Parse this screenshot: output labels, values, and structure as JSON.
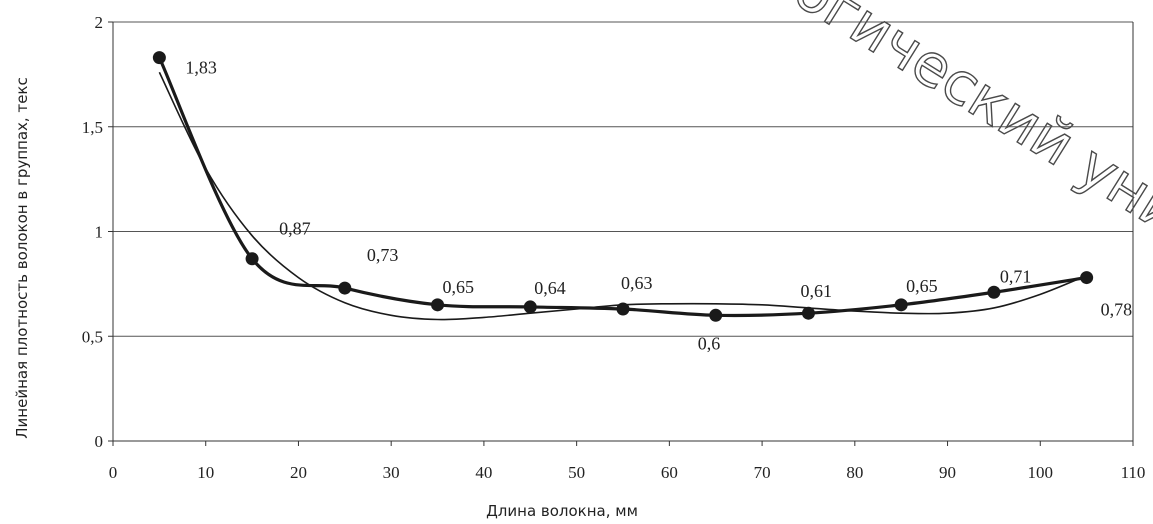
{
  "chart_data": {
    "type": "line",
    "title": "",
    "xlabel": "Длина волокна, мм",
    "ylabel": "Линейная плотность волокон в группах, текс",
    "xlim": [
      0,
      110
    ],
    "ylim": [
      0,
      2
    ],
    "x_ticks": [
      "0",
      "10",
      "20",
      "30",
      "40",
      "50",
      "60",
      "70",
      "80",
      "90",
      "100",
      "110"
    ],
    "y_ticks": [
      "0",
      "0,5",
      "1",
      "1,5",
      "2"
    ],
    "grid": "horizontal",
    "series": [
      {
        "x": [
          5,
          15,
          25,
          35,
          45,
          55,
          65,
          75,
          85,
          95,
          105
        ],
        "y": [
          1.83,
          0.87,
          0.73,
          0.65,
          0.64,
          0.63,
          0.6,
          0.61,
          0.65,
          0.71,
          0.78
        ],
        "labels": [
          "1,83",
          "0,87",
          "0,73",
          "0,65",
          "0,64",
          "0,63",
          "0,6",
          "0,61",
          "0,65",
          "0,71",
          "0,78"
        ],
        "color": "#1a1a1a",
        "markers": "circle"
      }
    ],
    "trendline": {
      "x": [
        5,
        10,
        15,
        20,
        25,
        30,
        35,
        40,
        45,
        50,
        55,
        60,
        65,
        70,
        75,
        80,
        85,
        90,
        95,
        100,
        105
      ],
      "y": [
        1.76,
        1.3,
        0.98,
        0.78,
        0.66,
        0.6,
        0.58,
        0.59,
        0.61,
        0.63,
        0.65,
        0.655,
        0.655,
        0.65,
        0.635,
        0.62,
        0.61,
        0.61,
        0.635,
        0.7,
        0.79
      ],
      "color": "#1a1a1a"
    }
  },
  "watermark_text": "огический универ"
}
